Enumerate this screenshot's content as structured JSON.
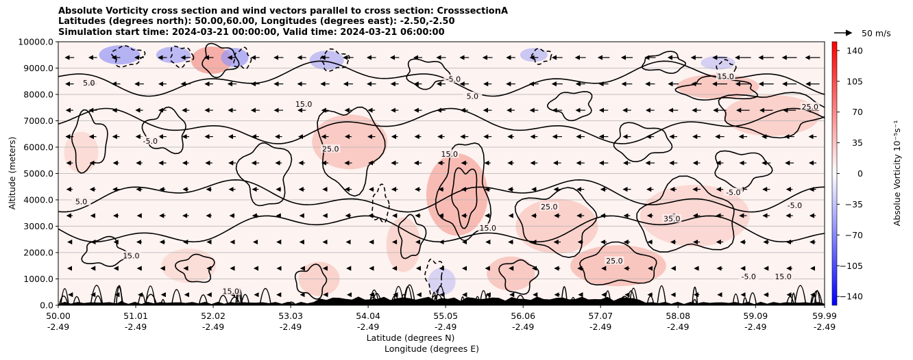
{
  "title_lines": [
    "Absolute Vorticity cross section and wind vectors parallel to cross section: CrosssectionA",
    "Latitudes (degrees north): 50.00,60.00, Longitudes (degrees east): -2.50,-2.50",
    "Simulation start time: 2024-03-21 00:00:00, Valid time: 2024-03-21 06:00:00"
  ],
  "quiver_key_label": "50 m/s",
  "colorbar": {
    "label": "Absolue Vorticity 10⁻⁵s⁻¹",
    "ticks": [
      140,
      105,
      70,
      35,
      0,
      -35,
      -70,
      -105,
      -140
    ],
    "tick_labels": [
      "140",
      "105",
      "70",
      "35",
      "0",
      "−35",
      "−70",
      "−105",
      "−140"
    ],
    "range": [
      -150,
      150
    ],
    "colormap": "bwr",
    "color_low": "#0000ff",
    "color_mid": "#ffffff",
    "color_high": "#ff0000"
  },
  "chart_data": {
    "type": "contour_cross_section",
    "ylabel": "Altitude (meters)",
    "xlabel_line1": "Latitude (degrees N)",
    "xlabel_line2": "Longitude (degrees E)",
    "ylim": [
      0,
      10000
    ],
    "xlim": [
      50.0,
      59.99
    ],
    "grid": "horizontal",
    "y_ticks": [
      0,
      1000,
      2000,
      3000,
      4000,
      5000,
      6000,
      7000,
      8000,
      9000,
      10000
    ],
    "y_tick_labels": [
      "0.0",
      "1000.0",
      "2000.0",
      "3000.0",
      "4000.0",
      "5000.0",
      "6000.0",
      "7000.0",
      "8000.0",
      "9000.0",
      "10000.0"
    ],
    "x_ticks": [
      50.0,
      51.01,
      52.02,
      53.03,
      54.04,
      55.05,
      56.06,
      57.07,
      58.08,
      59.09,
      59.99
    ],
    "x_tick_labels_lat": [
      "50.00",
      "51.01",
      "52.02",
      "53.03",
      "54.04",
      "55.05",
      "56.06",
      "57.07",
      "58.08",
      "59.09",
      "59.99"
    ],
    "x_tick_labels_lon": [
      "-2.49",
      "-2.49",
      "-2.49",
      "-2.49",
      "-2.49",
      "-2.49",
      "-2.49",
      "-2.49",
      "-2.49",
      "-2.49",
      "-2.49"
    ],
    "contour_levels_shown": [
      -5.0,
      5.0,
      15.0,
      25.0,
      35.0
    ],
    "contour_labels": [
      {
        "text": "15.0",
        "x": 55.1,
        "y": 5700
      },
      {
        "text": "15.0",
        "x": 58.7,
        "y": 8650
      },
      {
        "text": "-5.0",
        "x": 55.15,
        "y": 8550
      },
      {
        "text": "-5.0",
        "x": 58.8,
        "y": 4250
      },
      {
        "text": "-5.0",
        "x": 59.6,
        "y": 3750
      },
      {
        "text": "15.0",
        "x": 55.6,
        "y": 2900
      },
      {
        "text": "35.0",
        "x": 58.0,
        "y": 3250
      },
      {
        "text": "15.0",
        "x": 50.95,
        "y": 1850
      },
      {
        "text": "15.0",
        "x": 52.25,
        "y": 500
      },
      {
        "text": "25.0",
        "x": 57.25,
        "y": 1650
      },
      {
        "text": "-5.0",
        "x": 59.0,
        "y": 1050
      },
      {
        "text": "15.0",
        "x": 59.45,
        "y": 1050
      },
      {
        "text": "25.0",
        "x": 53.55,
        "y": 5900
      },
      {
        "text": "5.0",
        "x": 50.3,
        "y": 3900
      },
      {
        "text": "5.0",
        "x": 50.4,
        "y": 8400
      },
      {
        "text": "25.0",
        "x": 59.8,
        "y": 7500
      },
      {
        "text": "25.0",
        "x": 56.4,
        "y": 3700
      },
      {
        "text": "5.0",
        "x": 55.4,
        "y": 7900
      },
      {
        "text": "15.0",
        "x": 53.2,
        "y": 7600
      },
      {
        "text": "-5.0",
        "x": 51.2,
        "y": 6200
      }
    ],
    "wind_vectors": "leftward (northerly component along section), stronger aloft"
  }
}
